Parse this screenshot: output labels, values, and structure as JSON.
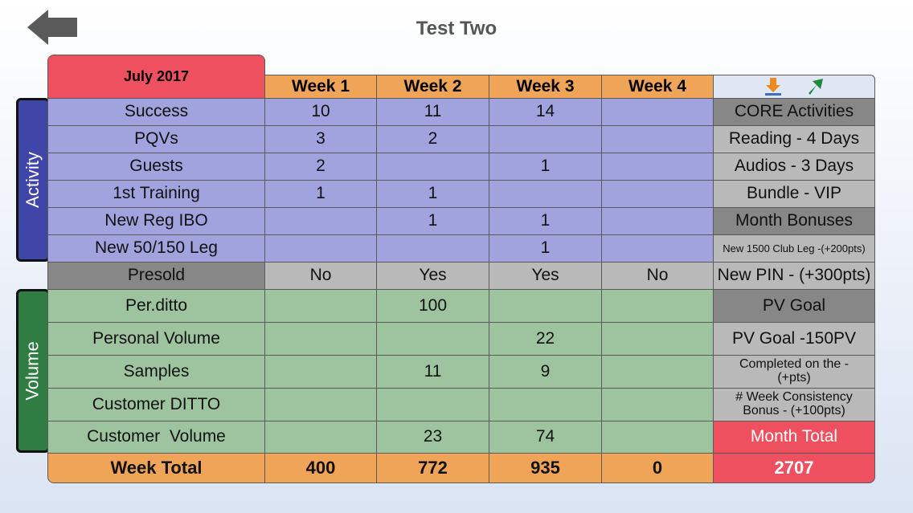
{
  "header": {
    "title": "Test Two",
    "back_icon": "back-arrow-icon"
  },
  "month_label": "July 2017",
  "weeks": [
    "Week 1",
    "Week 2",
    "Week 3",
    "Week 4"
  ],
  "toolbar_icons": [
    "download-icon",
    "export-arrow-icon"
  ],
  "sections": {
    "activity": "Activity",
    "volume": "Volume"
  },
  "activity_rows": [
    {
      "label": "Success",
      "values": [
        "10",
        "11",
        "14",
        ""
      ]
    },
    {
      "label": "PQVs",
      "values": [
        "3",
        "2",
        "",
        ""
      ]
    },
    {
      "label": "Guests",
      "values": [
        "2",
        "",
        "1",
        ""
      ]
    },
    {
      "label": "1st Training",
      "values": [
        "1",
        "1",
        "",
        ""
      ]
    },
    {
      "label": "New Reg IBO",
      "values": [
        "",
        "1",
        "1",
        ""
      ]
    },
    {
      "label": "New 50/150 Leg",
      "values": [
        "",
        "",
        "1",
        ""
      ]
    }
  ],
  "presold_row": {
    "label": "Presold",
    "values": [
      "No",
      "Yes",
      "Yes",
      "No"
    ]
  },
  "volume_rows": [
    {
      "label": "Per.ditto",
      "values": [
        "",
        "100",
        "",
        ""
      ]
    },
    {
      "label": "Personal Volume",
      "values": [
        "",
        "",
        "22",
        ""
      ]
    },
    {
      "label": "Samples",
      "values": [
        "",
        "11",
        "9",
        ""
      ]
    },
    {
      "label": "Customer DITTO",
      "values": [
        "",
        "",
        "",
        ""
      ]
    },
    {
      "label": "Customer  Volume",
      "values": [
        "",
        "23",
        "74",
        ""
      ]
    }
  ],
  "total_row": {
    "label": "Week Total",
    "values": [
      "400",
      "772",
      "935",
      "0"
    ],
    "month_total": "2707"
  },
  "side_panel": [
    "CORE Activities",
    "Reading - 4 Days",
    "Audios - 3 Days",
    "Bundle - VIP",
    "Month Bonuses",
    "New 1500 Club Leg -(+200pts)",
    "New PIN - (+300pts)",
    "PV Goal",
    "PV Goal -150PV",
    "Completed on the - (+pts)",
    "# Week Consistency Bonus - (+100pts)",
    "Month Total"
  ],
  "colors": {
    "activity": "#a1a3de",
    "volume": "#9ec49f",
    "week_header": "#efa457",
    "month_header": "#ef505f",
    "side_tab_activity": "#3f46a7",
    "side_tab_volume": "#2f7d43"
  }
}
